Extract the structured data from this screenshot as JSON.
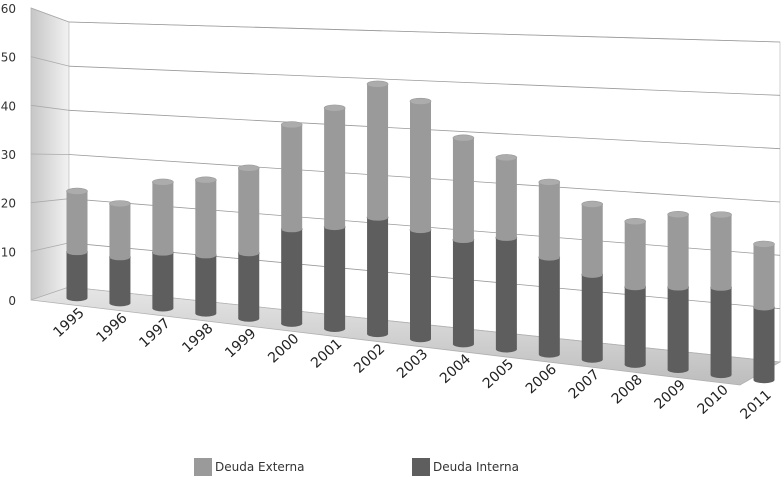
{
  "chart_data": {
    "type": "bar",
    "stacked": true,
    "view": "3d",
    "categories": [
      "1995",
      "1996",
      "1997",
      "1998",
      "1999",
      "2000",
      "2001",
      "2002",
      "2003",
      "2004",
      "2005",
      "2006",
      "2007",
      "2008",
      "2009",
      "2010",
      "2011"
    ],
    "series": [
      {
        "name": "Deuda Interna",
        "color": "#5e5e5e",
        "values": [
          9.5,
          9.5,
          11.5,
          12,
          13.5,
          19.5,
          21,
          24,
          22.5,
          21.5,
          23,
          20,
          17.5,
          16,
          17,
          18,
          15
        ]
      },
      {
        "name": "Deuda Externa",
        "color": "#9a9a9a",
        "values": [
          12.5,
          11,
          14.5,
          15.5,
          17.5,
          21.5,
          24.5,
          27.5,
          26.5,
          21,
          16.5,
          15.5,
          14.5,
          13.5,
          15,
          15,
          13
        ]
      }
    ],
    "y_ticks": [
      "0",
      "10",
      "20",
      "30",
      "40",
      "50",
      "60"
    ],
    "ylim": [
      0,
      60
    ],
    "grid": true,
    "legend_position": "bottom"
  }
}
